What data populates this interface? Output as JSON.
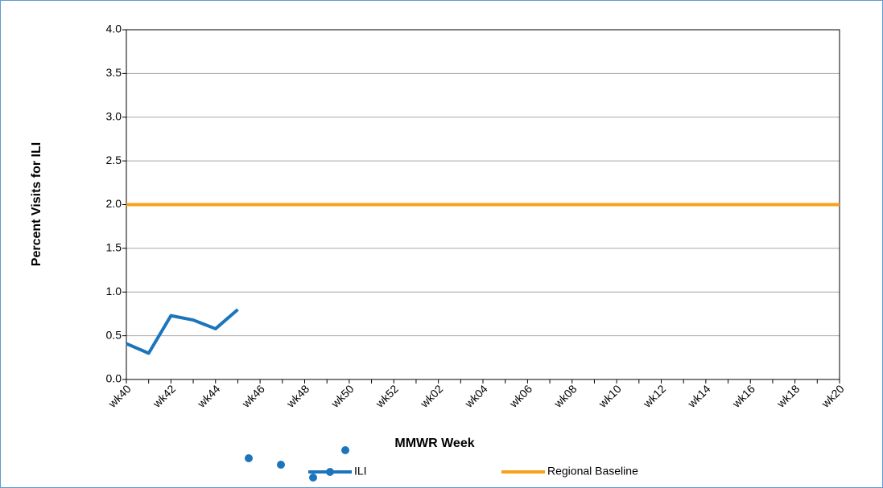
{
  "chart_data": {
    "type": "line",
    "x_label": "MMWR Week",
    "y_label": "Percent Visits for ILI",
    "categories": [
      "wk40",
      null,
      "wk42",
      null,
      "wk44",
      null,
      "wk46",
      null,
      "wk48",
      null,
      "wk50",
      null,
      "wk52",
      null,
      "wk02",
      null,
      "wk04",
      null,
      "wk06",
      null,
      "wk08",
      null,
      "wk10",
      null,
      "wk12",
      null,
      "wk14",
      null,
      "wk16",
      null,
      "wk18",
      null,
      "wk20"
    ],
    "series": [
      {
        "name": "ILI",
        "color": "#1b75bc",
        "values": [
          0.41,
          0.3,
          0.73,
          0.68,
          0.58,
          0.8,
          null,
          null,
          null,
          null,
          null,
          null,
          null,
          null,
          null,
          null,
          null,
          null,
          null,
          null,
          null,
          null,
          null,
          null,
          null,
          null,
          null,
          null,
          null,
          null,
          null,
          null,
          null
        ]
      },
      {
        "name": "Regional Baseline",
        "color": "#f7a11a",
        "values": [
          2.0,
          2.0,
          2.0,
          2.0,
          2.0,
          2.0,
          2.0,
          2.0,
          2.0,
          2.0,
          2.0,
          2.0,
          2.0,
          2.0,
          2.0,
          2.0,
          2.0,
          2.0,
          2.0,
          2.0,
          2.0,
          2.0,
          2.0,
          2.0,
          2.0,
          2.0,
          2.0,
          2.0,
          2.0,
          2.0,
          2.0,
          2.0,
          2.0
        ]
      }
    ],
    "ylim": [
      0,
      4
    ],
    "yticks": [
      {
        "value": 0,
        "label": "0.0"
      },
      0.5,
      {
        "value": 1,
        "label": "1.0"
      },
      1.5,
      {
        "value": 2,
        "label": "2.0"
      },
      2.5,
      {
        "value": 3,
        "label": "3.0"
      },
      3.5,
      {
        "value": 4,
        "label": "4.0"
      }
    ],
    "grid": true,
    "legend": "bottom"
  }
}
